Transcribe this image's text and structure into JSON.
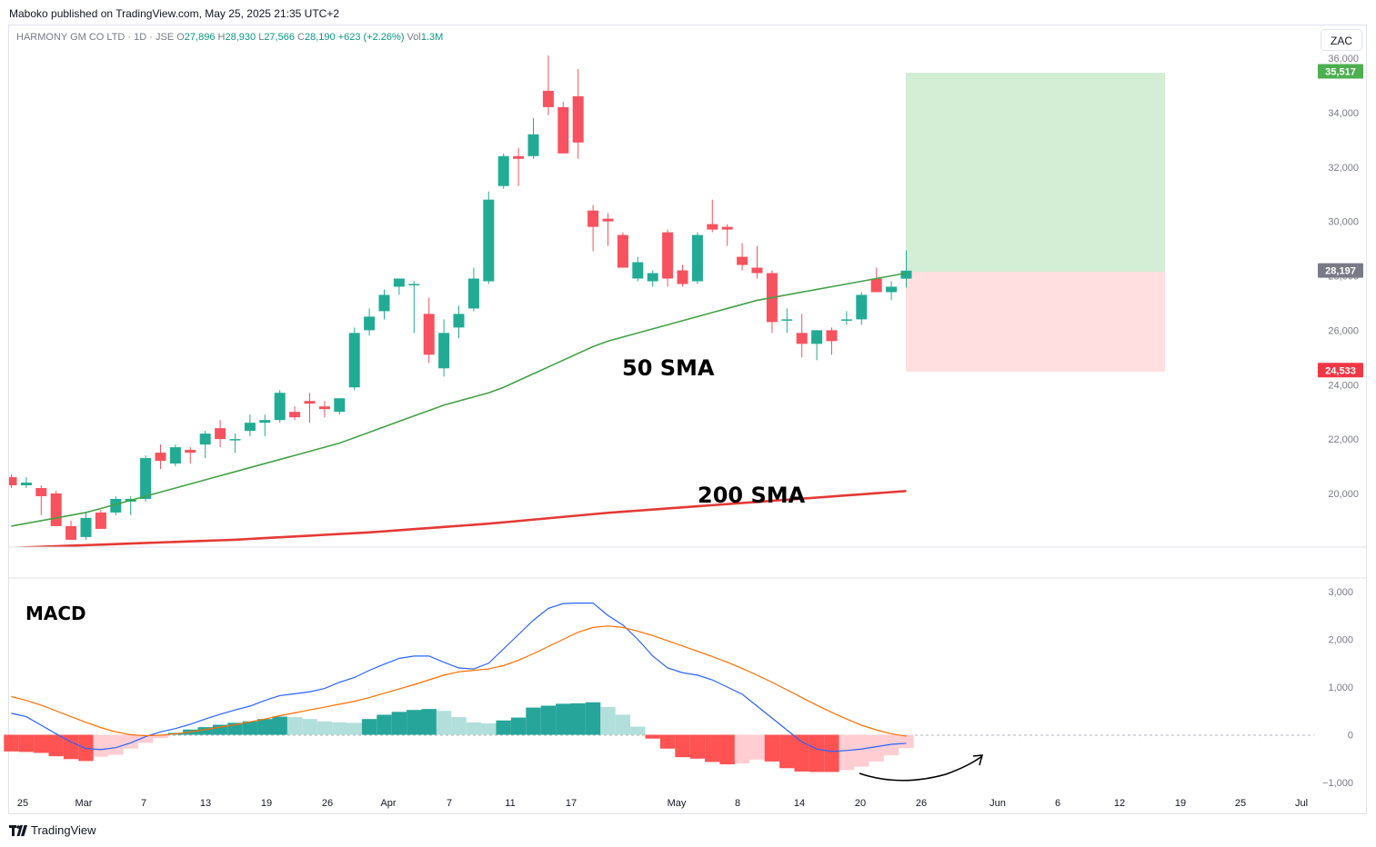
{
  "header": {
    "published": "Maboko published on TradingView.com, May 25, 2025 21:35 UTC+2",
    "symbol": "HARMONY GM CO LTD · 1D · JSE",
    "o_label": "O",
    "o_value": "27,896",
    "h_label": "H",
    "h_value": "28,930",
    "l_label": "L",
    "l_value": "27,566",
    "c_label": "C",
    "c_value": "28,190",
    "change": "+623 (+2.26%)",
    "vol_label": "Vol",
    "vol_value": "1.3M",
    "currency": "ZAC"
  },
  "footer": {
    "brand": "TradingView",
    "brand_icon": "tradingview-logo-icon"
  },
  "colors": {
    "up": "#26a69a",
    "up_body": "#22ab94",
    "down": "#f23645",
    "down_body": "#f7525f",
    "sma50": "#43a047",
    "sma200": "#e53935",
    "macd": "#2962ff",
    "signal": "#ff6d00",
    "hist_up": "#26a69a",
    "hist_up_light": "#b2dfdb",
    "hist_down": "#ff5252",
    "hist_down_light": "#ffcdd2",
    "target_zone": "#d3eed5",
    "stop_zone": "#ffdfdf"
  },
  "chart_data": [
    {
      "type": "candlestick",
      "title": "HARMONY GM CO LTD · 1D · JSE",
      "y_range": [
        18000,
        36500
      ],
      "y_ticks": [
        20000,
        22000,
        24000,
        26000,
        28000,
        30000,
        32000,
        34000,
        36000
      ],
      "y_tick_labels": [
        "20,000",
        "22,000",
        "24,000",
        "26,000",
        "28,000",
        "30,000",
        "32,000",
        "34,000",
        "36,000"
      ],
      "x_tick_labels": [
        "25",
        "Mar",
        "7",
        "13",
        "19",
        "26",
        "Apr",
        "7",
        "11",
        "17",
        "May",
        "8",
        "14",
        "20",
        "26",
        "Jun",
        "6",
        "12",
        "19",
        "25",
        "Jul"
      ],
      "grid": false,
      "price_labels": [
        {
          "value": 35517,
          "text": "35,517",
          "color": "#4caf50"
        },
        {
          "value": 28197,
          "text": "28,197",
          "color": "#787b86"
        },
        {
          "value": 24533,
          "text": "24,533",
          "color": "#f23645"
        }
      ],
      "position": {
        "entry": 28197,
        "target": 35517,
        "stop": 24533
      },
      "annotations": [
        "50 SMA",
        "200 SMA"
      ],
      "candles": [
        {
          "o": 20600,
          "h": 20700,
          "l": 20200,
          "c": 20300
        },
        {
          "o": 20300,
          "h": 20600,
          "l": 20200,
          "c": 20400
        },
        {
          "o": 20200,
          "h": 20300,
          "l": 19200,
          "c": 19900
        },
        {
          "o": 20000,
          "h": 20100,
          "l": 18900,
          "c": 18800
        },
        {
          "o": 18800,
          "h": 19000,
          "l": 18300,
          "c": 18300
        },
        {
          "o": 18400,
          "h": 19300,
          "l": 18300,
          "c": 19100
        },
        {
          "o": 19300,
          "h": 19400,
          "l": 18700,
          "c": 18700
        },
        {
          "o": 19300,
          "h": 19900,
          "l": 19200,
          "c": 19800
        },
        {
          "o": 19700,
          "h": 19900,
          "l": 19200,
          "c": 19800
        },
        {
          "o": 19800,
          "h": 21400,
          "l": 19700,
          "c": 21300
        },
        {
          "o": 21500,
          "h": 21800,
          "l": 20900,
          "c": 21200
        },
        {
          "o": 21100,
          "h": 21800,
          "l": 21000,
          "c": 21700
        },
        {
          "o": 21600,
          "h": 21700,
          "l": 21100,
          "c": 21500
        },
        {
          "o": 21800,
          "h": 22300,
          "l": 21300,
          "c": 22200
        },
        {
          "o": 22400,
          "h": 22700,
          "l": 21700,
          "c": 22000
        },
        {
          "o": 22000,
          "h": 22200,
          "l": 21500,
          "c": 22000
        },
        {
          "o": 22300,
          "h": 22900,
          "l": 22100,
          "c": 22600
        },
        {
          "o": 22600,
          "h": 22900,
          "l": 22100,
          "c": 22700
        },
        {
          "o": 22700,
          "h": 23800,
          "l": 22600,
          "c": 23700
        },
        {
          "o": 23000,
          "h": 23200,
          "l": 22700,
          "c": 22800
        },
        {
          "o": 23400,
          "h": 23700,
          "l": 22600,
          "c": 23300
        },
        {
          "o": 23200,
          "h": 23400,
          "l": 22800,
          "c": 23100
        },
        {
          "o": 23000,
          "h": 23500,
          "l": 22900,
          "c": 23500
        },
        {
          "o": 23900,
          "h": 26100,
          "l": 23800,
          "c": 25900
        },
        {
          "o": 26000,
          "h": 26800,
          "l": 25800,
          "c": 26500
        },
        {
          "o": 26700,
          "h": 27500,
          "l": 26400,
          "c": 27300
        },
        {
          "o": 27600,
          "h": 27900,
          "l": 27300,
          "c": 27900
        },
        {
          "o": 27700,
          "h": 27800,
          "l": 25900,
          "c": 27700
        },
        {
          "o": 26600,
          "h": 27200,
          "l": 24800,
          "c": 25100
        },
        {
          "o": 24600,
          "h": 26400,
          "l": 24300,
          "c": 25900
        },
        {
          "o": 26100,
          "h": 26900,
          "l": 25700,
          "c": 26600
        },
        {
          "o": 26800,
          "h": 28300,
          "l": 26700,
          "c": 27900
        },
        {
          "o": 27800,
          "h": 31100,
          "l": 27700,
          "c": 30800
        },
        {
          "o": 31300,
          "h": 32500,
          "l": 31200,
          "c": 32400
        },
        {
          "o": 32400,
          "h": 32700,
          "l": 31300,
          "c": 32300
        },
        {
          "o": 32400,
          "h": 33800,
          "l": 32300,
          "c": 33200
        },
        {
          "o": 34800,
          "h": 36100,
          "l": 33900,
          "c": 34200
        },
        {
          "o": 34200,
          "h": 34400,
          "l": 32500,
          "c": 32500
        },
        {
          "o": 34600,
          "h": 35600,
          "l": 32300,
          "c": 32900
        },
        {
          "o": 30400,
          "h": 30600,
          "l": 28900,
          "c": 29800
        },
        {
          "o": 30100,
          "h": 30300,
          "l": 29100,
          "c": 30000
        },
        {
          "o": 29500,
          "h": 29600,
          "l": 28300,
          "c": 28300
        },
        {
          "o": 27900,
          "h": 28700,
          "l": 27800,
          "c": 28500
        },
        {
          "o": 27800,
          "h": 28200,
          "l": 27600,
          "c": 28100
        },
        {
          "o": 29600,
          "h": 29700,
          "l": 27600,
          "c": 27900
        },
        {
          "o": 28200,
          "h": 28400,
          "l": 27600,
          "c": 27700
        },
        {
          "o": 27800,
          "h": 29600,
          "l": 27700,
          "c": 29500
        },
        {
          "o": 29900,
          "h": 30800,
          "l": 29600,
          "c": 29700
        },
        {
          "o": 29800,
          "h": 29900,
          "l": 29100,
          "c": 29700
        },
        {
          "o": 28700,
          "h": 29200,
          "l": 28200,
          "c": 28400
        },
        {
          "o": 28300,
          "h": 29100,
          "l": 27900,
          "c": 28100
        },
        {
          "o": 28100,
          "h": 28200,
          "l": 25900,
          "c": 26300
        },
        {
          "o": 26400,
          "h": 26800,
          "l": 25900,
          "c": 26400
        },
        {
          "o": 25900,
          "h": 26600,
          "l": 25000,
          "c": 25500
        },
        {
          "o": 25500,
          "h": 26000,
          "l": 24900,
          "c": 26000
        },
        {
          "o": 26000,
          "h": 26100,
          "l": 25100,
          "c": 25600
        },
        {
          "o": 26400,
          "h": 26700,
          "l": 26200,
          "c": 26400
        },
        {
          "o": 26400,
          "h": 27400,
          "l": 26200,
          "c": 27300
        },
        {
          "o": 27900,
          "h": 28300,
          "l": 27400,
          "c": 27400
        },
        {
          "o": 27400,
          "h": 27800,
          "l": 27100,
          "c": 27600
        },
        {
          "o": 27896,
          "h": 28930,
          "l": 27566,
          "c": 28190
        }
      ],
      "sma50": [
        18800,
        18900,
        19000,
        19100,
        19200,
        19300,
        19450,
        19600,
        19750,
        19900,
        20050,
        20200,
        20350,
        20500,
        20650,
        20800,
        20950,
        21100,
        21250,
        21400,
        21550,
        21700,
        21850,
        22050,
        22250,
        22450,
        22650,
        22850,
        23050,
        23250,
        23400,
        23550,
        23700,
        23900,
        24150,
        24400,
        24650,
        24900,
        25150,
        25400,
        25600,
        25750,
        25900,
        26050,
        26200,
        26350,
        26500,
        26650,
        26800,
        26950,
        27100,
        27200,
        27300,
        27400,
        27500,
        27600,
        27700,
        27800,
        27900,
        28000,
        28100
      ],
      "sma200": [
        18000,
        18020,
        18040,
        18060,
        18080,
        18100,
        18120,
        18140,
        18160,
        18180,
        18200,
        18220,
        18240,
        18260,
        18280,
        18300,
        18330,
        18360,
        18390,
        18420,
        18450,
        18480,
        18510,
        18540,
        18570,
        18610,
        18650,
        18690,
        18730,
        18770,
        18810,
        18850,
        18890,
        18940,
        18990,
        19040,
        19090,
        19140,
        19190,
        19240,
        19290,
        19330,
        19370,
        19410,
        19450,
        19490,
        19530,
        19570,
        19610,
        19650,
        19690,
        19730,
        19770,
        19810,
        19850,
        19890,
        19930,
        19970,
        20010,
        20050,
        20090
      ]
    },
    {
      "type": "macd",
      "title": "MACD",
      "y_range": [
        -1300,
        3300
      ],
      "y_ticks": [
        -1000,
        0,
        1000,
        2000,
        3000
      ],
      "y_tick_labels": [
        "−1,000",
        "0",
        "1,000",
        "2,000",
        "3,000"
      ],
      "macd": [
        450,
        380,
        200,
        20,
        -150,
        -290,
        -310,
        -270,
        -170,
        -40,
        60,
        130,
        220,
        330,
        430,
        520,
        600,
        720,
        820,
        860,
        900,
        970,
        1100,
        1200,
        1350,
        1480,
        1600,
        1650,
        1650,
        1520,
        1400,
        1380,
        1500,
        1800,
        2100,
        2400,
        2650,
        2750,
        2760,
        2760,
        2500,
        2300,
        2000,
        1650,
        1400,
        1300,
        1250,
        1150,
        1000,
        850,
        600,
        350,
        100,
        -150,
        -300,
        -350,
        -330,
        -300,
        -250,
        -200,
        -180
      ],
      "signal": [
        800,
        720,
        620,
        500,
        380,
        260,
        150,
        60,
        0,
        -20,
        -10,
        20,
        60,
        110,
        160,
        210,
        270,
        330,
        400,
        460,
        520,
        580,
        640,
        700,
        780,
        870,
        960,
        1050,
        1150,
        1250,
        1320,
        1350,
        1380,
        1450,
        1560,
        1700,
        1850,
        2000,
        2150,
        2250,
        2280,
        2250,
        2170,
        2080,
        1970,
        1860,
        1750,
        1640,
        1520,
        1390,
        1250,
        1100,
        940,
        780,
        620,
        470,
        330,
        200,
        100,
        20,
        -30
      ],
      "histogram": [
        -350,
        -360,
        -380,
        -450,
        -510,
        -550,
        -460,
        -420,
        -290,
        -170,
        -70,
        40,
        110,
        160,
        210,
        250,
        280,
        330,
        380,
        370,
        330,
        280,
        260,
        250,
        330,
        420,
        480,
        520,
        540,
        500,
        370,
        260,
        240,
        300,
        360,
        570,
        610,
        650,
        660,
        680,
        580,
        420,
        170,
        -80,
        -290,
        -470,
        -500,
        -570,
        -620,
        -600,
        -520,
        -560,
        -700,
        -770,
        -780,
        -780,
        -740,
        -670,
        -560,
        -430,
        -280
      ]
    }
  ]
}
